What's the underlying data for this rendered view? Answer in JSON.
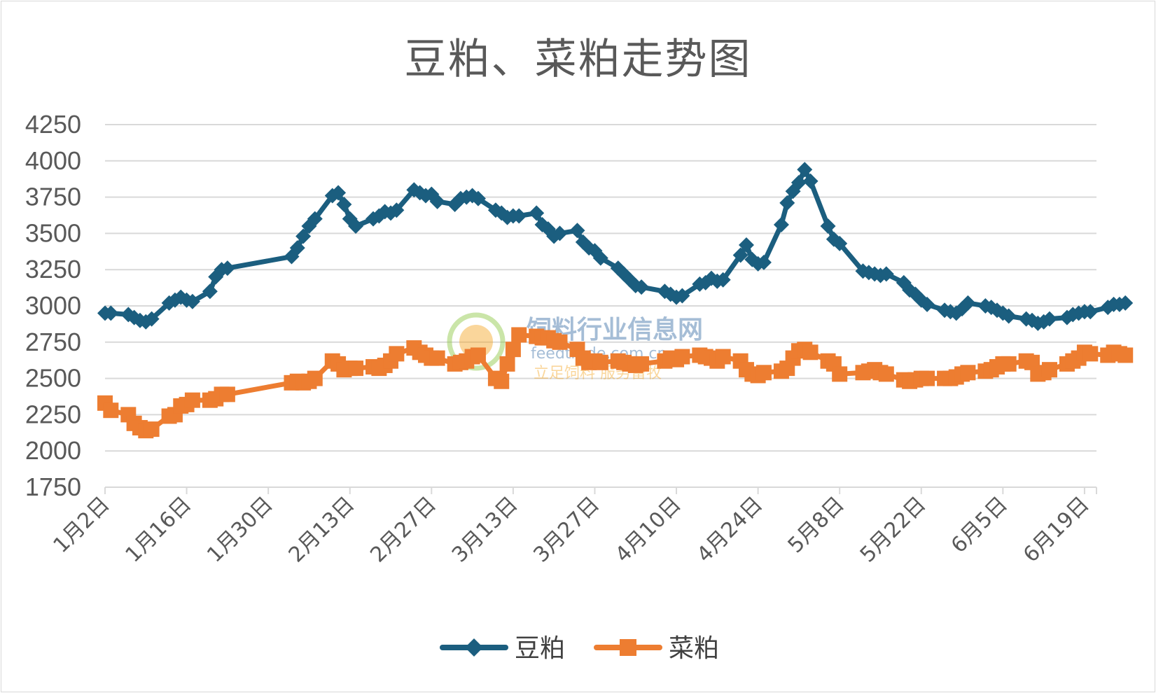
{
  "chart_data": {
    "type": "line",
    "title": "豆粕、菜粕走势图",
    "xlabel": "",
    "ylabel": "",
    "ylim": [
      1750,
      4250
    ],
    "y_ticks": [
      1750,
      2000,
      2250,
      2500,
      2750,
      3000,
      3250,
      3500,
      3750,
      4000,
      4250
    ],
    "x_tick_labels": [
      "1月2日",
      "1月16日",
      "1月30日",
      "2月13日",
      "2月27日",
      "3月13日",
      "3月27日",
      "4月10日",
      "4月24日",
      "5月8日",
      "5月22日",
      "6月5日",
      "6月19日"
    ],
    "grid": true,
    "legend_position": "bottom",
    "series": [
      {
        "name": "豆粕",
        "color": "#1b5e7f",
        "marker": "diamond",
        "points": [
          {
            "x": "2020-01-02",
            "y": 2950
          },
          {
            "x": "2020-01-03",
            "y": 2950
          },
          {
            "x": "2020-01-06",
            "y": 2940
          },
          {
            "x": "2020-01-07",
            "y": 2920
          },
          {
            "x": "2020-01-08",
            "y": 2900
          },
          {
            "x": "2020-01-09",
            "y": 2890
          },
          {
            "x": "2020-01-10",
            "y": 2910
          },
          {
            "x": "2020-01-13",
            "y": 3020
          },
          {
            "x": "2020-01-14",
            "y": 3040
          },
          {
            "x": "2020-01-15",
            "y": 3060
          },
          {
            "x": "2020-01-16",
            "y": 3040
          },
          {
            "x": "2020-01-17",
            "y": 3030
          },
          {
            "x": "2020-01-20",
            "y": 3100
          },
          {
            "x": "2020-01-21",
            "y": 3200
          },
          {
            "x": "2020-01-22",
            "y": 3250
          },
          {
            "x": "2020-01-23",
            "y": 3260
          },
          {
            "x": "2020-02-03",
            "y": 3340
          },
          {
            "x": "2020-02-04",
            "y": 3400
          },
          {
            "x": "2020-02-05",
            "y": 3480
          },
          {
            "x": "2020-02-06",
            "y": 3550
          },
          {
            "x": "2020-02-07",
            "y": 3600
          },
          {
            "x": "2020-02-10",
            "y": 3760
          },
          {
            "x": "2020-02-11",
            "y": 3780
          },
          {
            "x": "2020-02-12",
            "y": 3700
          },
          {
            "x": "2020-02-13",
            "y": 3600
          },
          {
            "x": "2020-02-14",
            "y": 3550
          },
          {
            "x": "2020-02-17",
            "y": 3600
          },
          {
            "x": "2020-02-18",
            "y": 3620
          },
          {
            "x": "2020-02-19",
            "y": 3650
          },
          {
            "x": "2020-02-20",
            "y": 3640
          },
          {
            "x": "2020-02-21",
            "y": 3660
          },
          {
            "x": "2020-02-24",
            "y": 3800
          },
          {
            "x": "2020-02-25",
            "y": 3780
          },
          {
            "x": "2020-02-26",
            "y": 3760
          },
          {
            "x": "2020-02-27",
            "y": 3770
          },
          {
            "x": "2020-02-28",
            "y": 3720
          },
          {
            "x": "2020-03-02",
            "y": 3700
          },
          {
            "x": "2020-03-03",
            "y": 3740
          },
          {
            "x": "2020-03-04",
            "y": 3750
          },
          {
            "x": "2020-03-05",
            "y": 3760
          },
          {
            "x": "2020-03-06",
            "y": 3740
          },
          {
            "x": "2020-03-09",
            "y": 3660
          },
          {
            "x": "2020-03-10",
            "y": 3640
          },
          {
            "x": "2020-03-11",
            "y": 3610
          },
          {
            "x": "2020-03-12",
            "y": 3620
          },
          {
            "x": "2020-03-13",
            "y": 3620
          },
          {
            "x": "2020-03-16",
            "y": 3640
          },
          {
            "x": "2020-03-17",
            "y": 3560
          },
          {
            "x": "2020-03-18",
            "y": 3530
          },
          {
            "x": "2020-03-19",
            "y": 3480
          },
          {
            "x": "2020-03-20",
            "y": 3500
          },
          {
            "x": "2020-03-23",
            "y": 3520
          },
          {
            "x": "2020-03-24",
            "y": 3440
          },
          {
            "x": "2020-03-25",
            "y": 3400
          },
          {
            "x": "2020-03-26",
            "y": 3380
          },
          {
            "x": "2020-03-27",
            "y": 3330
          },
          {
            "x": "2020-03-30",
            "y": 3260
          },
          {
            "x": "2020-03-31",
            "y": 3220
          },
          {
            "x": "2020-04-01",
            "y": 3180
          },
          {
            "x": "2020-04-02",
            "y": 3140
          },
          {
            "x": "2020-04-03",
            "y": 3130
          },
          {
            "x": "2020-04-07",
            "y": 3100
          },
          {
            "x": "2020-04-08",
            "y": 3080
          },
          {
            "x": "2020-04-09",
            "y": 3060
          },
          {
            "x": "2020-04-10",
            "y": 3070
          },
          {
            "x": "2020-04-13",
            "y": 3150
          },
          {
            "x": "2020-04-14",
            "y": 3160
          },
          {
            "x": "2020-04-15",
            "y": 3190
          },
          {
            "x": "2020-04-16",
            "y": 3170
          },
          {
            "x": "2020-04-17",
            "y": 3180
          },
          {
            "x": "2020-04-20",
            "y": 3350
          },
          {
            "x": "2020-04-21",
            "y": 3420
          },
          {
            "x": "2020-04-22",
            "y": 3320
          },
          {
            "x": "2020-04-23",
            "y": 3290
          },
          {
            "x": "2020-04-24",
            "y": 3300
          },
          {
            "x": "2020-04-27",
            "y": 3560
          },
          {
            "x": "2020-04-28",
            "y": 3710
          },
          {
            "x": "2020-04-29",
            "y": 3790
          },
          {
            "x": "2020-04-30",
            "y": 3850
          },
          {
            "x": "2020-05-01",
            "y": 3940
          },
          {
            "x": "2020-05-02",
            "y": 3860
          },
          {
            "x": "2020-05-05",
            "y": 3550
          },
          {
            "x": "2020-05-06",
            "y": 3460
          },
          {
            "x": "2020-05-07",
            "y": 3430
          },
          {
            "x": "2020-05-11",
            "y": 3240
          },
          {
            "x": "2020-05-12",
            "y": 3230
          },
          {
            "x": "2020-05-13",
            "y": 3220
          },
          {
            "x": "2020-05-14",
            "y": 3210
          },
          {
            "x": "2020-05-15",
            "y": 3220
          },
          {
            "x": "2020-05-18",
            "y": 3160
          },
          {
            "x": "2020-05-19",
            "y": 3110
          },
          {
            "x": "2020-05-20",
            "y": 3080
          },
          {
            "x": "2020-05-21",
            "y": 3040
          },
          {
            "x": "2020-05-22",
            "y": 3010
          },
          {
            "x": "2020-05-25",
            "y": 2970
          },
          {
            "x": "2020-05-26",
            "y": 2960
          },
          {
            "x": "2020-05-27",
            "y": 2950
          },
          {
            "x": "2020-05-28",
            "y": 2980
          },
          {
            "x": "2020-05-29",
            "y": 3020
          },
          {
            "x": "2020-06-01",
            "y": 3000
          },
          {
            "x": "2020-06-02",
            "y": 2990
          },
          {
            "x": "2020-06-03",
            "y": 2970
          },
          {
            "x": "2020-06-04",
            "y": 2950
          },
          {
            "x": "2020-06-05",
            "y": 2930
          },
          {
            "x": "2020-06-08",
            "y": 2910
          },
          {
            "x": "2020-06-09",
            "y": 2900
          },
          {
            "x": "2020-06-10",
            "y": 2880
          },
          {
            "x": "2020-06-11",
            "y": 2890
          },
          {
            "x": "2020-06-12",
            "y": 2910
          },
          {
            "x": "2020-06-15",
            "y": 2920
          },
          {
            "x": "2020-06-16",
            "y": 2940
          },
          {
            "x": "2020-06-17",
            "y": 2950
          },
          {
            "x": "2020-06-18",
            "y": 2960
          },
          {
            "x": "2020-06-19",
            "y": 2960
          },
          {
            "x": "2020-06-22",
            "y": 2990
          },
          {
            "x": "2020-06-23",
            "y": 3010
          },
          {
            "x": "2020-06-24",
            "y": 3010
          },
          {
            "x": "2020-06-25",
            "y": 3020
          }
        ]
      },
      {
        "name": "菜粕",
        "color": "#ed7d31",
        "marker": "square",
        "points": [
          {
            "x": "2020-01-02",
            "y": 2330
          },
          {
            "x": "2020-01-03",
            "y": 2280
          },
          {
            "x": "2020-01-06",
            "y": 2250
          },
          {
            "x": "2020-01-07",
            "y": 2190
          },
          {
            "x": "2020-01-08",
            "y": 2160
          },
          {
            "x": "2020-01-09",
            "y": 2140
          },
          {
            "x": "2020-01-10",
            "y": 2150
          },
          {
            "x": "2020-01-13",
            "y": 2240
          },
          {
            "x": "2020-01-14",
            "y": 2250
          },
          {
            "x": "2020-01-15",
            "y": 2310
          },
          {
            "x": "2020-01-16",
            "y": 2320
          },
          {
            "x": "2020-01-17",
            "y": 2350
          },
          {
            "x": "2020-01-20",
            "y": 2350
          },
          {
            "x": "2020-01-21",
            "y": 2360
          },
          {
            "x": "2020-01-22",
            "y": 2390
          },
          {
            "x": "2020-01-23",
            "y": 2390
          },
          {
            "x": "2020-02-03",
            "y": 2470
          },
          {
            "x": "2020-02-04",
            "y": 2480
          },
          {
            "x": "2020-02-05",
            "y": 2470
          },
          {
            "x": "2020-02-06",
            "y": 2480
          },
          {
            "x": "2020-02-07",
            "y": 2500
          },
          {
            "x": "2020-02-10",
            "y": 2620
          },
          {
            "x": "2020-02-11",
            "y": 2600
          },
          {
            "x": "2020-02-12",
            "y": 2560
          },
          {
            "x": "2020-02-13",
            "y": 2570
          },
          {
            "x": "2020-02-14",
            "y": 2570
          },
          {
            "x": "2020-02-17",
            "y": 2580
          },
          {
            "x": "2020-02-18",
            "y": 2570
          },
          {
            "x": "2020-02-19",
            "y": 2590
          },
          {
            "x": "2020-02-20",
            "y": 2620
          },
          {
            "x": "2020-02-21",
            "y": 2670
          },
          {
            "x": "2020-02-24",
            "y": 2710
          },
          {
            "x": "2020-02-25",
            "y": 2680
          },
          {
            "x": "2020-02-26",
            "y": 2660
          },
          {
            "x": "2020-02-27",
            "y": 2640
          },
          {
            "x": "2020-02-28",
            "y": 2640
          },
          {
            "x": "2020-03-02",
            "y": 2600
          },
          {
            "x": "2020-03-03",
            "y": 2610
          },
          {
            "x": "2020-03-04",
            "y": 2620
          },
          {
            "x": "2020-03-05",
            "y": 2650
          },
          {
            "x": "2020-03-06",
            "y": 2660
          },
          {
            "x": "2020-03-09",
            "y": 2500
          },
          {
            "x": "2020-03-10",
            "y": 2480
          },
          {
            "x": "2020-03-11",
            "y": 2600
          },
          {
            "x": "2020-03-12",
            "y": 2700
          },
          {
            "x": "2020-03-13",
            "y": 2800
          },
          {
            "x": "2020-03-16",
            "y": 2790
          },
          {
            "x": "2020-03-17",
            "y": 2780
          },
          {
            "x": "2020-03-18",
            "y": 2780
          },
          {
            "x": "2020-03-19",
            "y": 2760
          },
          {
            "x": "2020-03-20",
            "y": 2750
          },
          {
            "x": "2020-03-23",
            "y": 2700
          },
          {
            "x": "2020-03-24",
            "y": 2640
          },
          {
            "x": "2020-03-25",
            "y": 2610
          },
          {
            "x": "2020-03-26",
            "y": 2620
          },
          {
            "x": "2020-03-27",
            "y": 2610
          },
          {
            "x": "2020-03-30",
            "y": 2620
          },
          {
            "x": "2020-03-31",
            "y": 2610
          },
          {
            "x": "2020-04-01",
            "y": 2600
          },
          {
            "x": "2020-04-02",
            "y": 2590
          },
          {
            "x": "2020-04-03",
            "y": 2600
          },
          {
            "x": "2020-04-07",
            "y": 2620
          },
          {
            "x": "2020-04-08",
            "y": 2640
          },
          {
            "x": "2020-04-09",
            "y": 2630
          },
          {
            "x": "2020-04-10",
            "y": 2650
          },
          {
            "x": "2020-04-13",
            "y": 2660
          },
          {
            "x": "2020-04-14",
            "y": 2650
          },
          {
            "x": "2020-04-15",
            "y": 2640
          },
          {
            "x": "2020-04-16",
            "y": 2620
          },
          {
            "x": "2020-04-17",
            "y": 2650
          },
          {
            "x": "2020-04-20",
            "y": 2620
          },
          {
            "x": "2020-04-21",
            "y": 2560
          },
          {
            "x": "2020-04-22",
            "y": 2530
          },
          {
            "x": "2020-04-23",
            "y": 2520
          },
          {
            "x": "2020-04-24",
            "y": 2540
          },
          {
            "x": "2020-04-27",
            "y": 2550
          },
          {
            "x": "2020-04-28",
            "y": 2570
          },
          {
            "x": "2020-04-29",
            "y": 2640
          },
          {
            "x": "2020-04-30",
            "y": 2690
          },
          {
            "x": "2020-05-01",
            "y": 2700
          },
          {
            "x": "2020-05-02",
            "y": 2680
          },
          {
            "x": "2020-05-05",
            "y": 2620
          },
          {
            "x": "2020-05-06",
            "y": 2600
          },
          {
            "x": "2020-05-07",
            "y": 2530
          },
          {
            "x": "2020-05-11",
            "y": 2540
          },
          {
            "x": "2020-05-12",
            "y": 2550
          },
          {
            "x": "2020-05-13",
            "y": 2560
          },
          {
            "x": "2020-05-14",
            "y": 2540
          },
          {
            "x": "2020-05-15",
            "y": 2530
          },
          {
            "x": "2020-05-18",
            "y": 2490
          },
          {
            "x": "2020-05-19",
            "y": 2480
          },
          {
            "x": "2020-05-20",
            "y": 2490
          },
          {
            "x": "2020-05-21",
            "y": 2500
          },
          {
            "x": "2020-05-22",
            "y": 2500
          },
          {
            "x": "2020-05-25",
            "y": 2500
          },
          {
            "x": "2020-05-26",
            "y": 2500
          },
          {
            "x": "2020-05-27",
            "y": 2510
          },
          {
            "x": "2020-05-28",
            "y": 2530
          },
          {
            "x": "2020-05-29",
            "y": 2540
          },
          {
            "x": "2020-06-01",
            "y": 2550
          },
          {
            "x": "2020-06-02",
            "y": 2560
          },
          {
            "x": "2020-06-03",
            "y": 2580
          },
          {
            "x": "2020-06-04",
            "y": 2600
          },
          {
            "x": "2020-06-05",
            "y": 2600
          },
          {
            "x": "2020-06-08",
            "y": 2620
          },
          {
            "x": "2020-06-09",
            "y": 2610
          },
          {
            "x": "2020-06-10",
            "y": 2530
          },
          {
            "x": "2020-06-11",
            "y": 2540
          },
          {
            "x": "2020-06-12",
            "y": 2560
          },
          {
            "x": "2020-06-15",
            "y": 2600
          },
          {
            "x": "2020-06-16",
            "y": 2620
          },
          {
            "x": "2020-06-17",
            "y": 2640
          },
          {
            "x": "2020-06-18",
            "y": 2680
          },
          {
            "x": "2020-06-19",
            "y": 2670
          },
          {
            "x": "2020-06-22",
            "y": 2660
          },
          {
            "x": "2020-06-23",
            "y": 2680
          },
          {
            "x": "2020-06-24",
            "y": 2670
          },
          {
            "x": "2020-06-25",
            "y": 2660
          }
        ]
      }
    ]
  },
  "watermark": {
    "name": "饲料行业信息网",
    "url": "feedtrade.com.cn",
    "slogan": "立足饲料  服务畜牧",
    "colors": {
      "green": "#8cc63f",
      "orange": "#f5a623",
      "blue": "#3a6ea5"
    }
  }
}
